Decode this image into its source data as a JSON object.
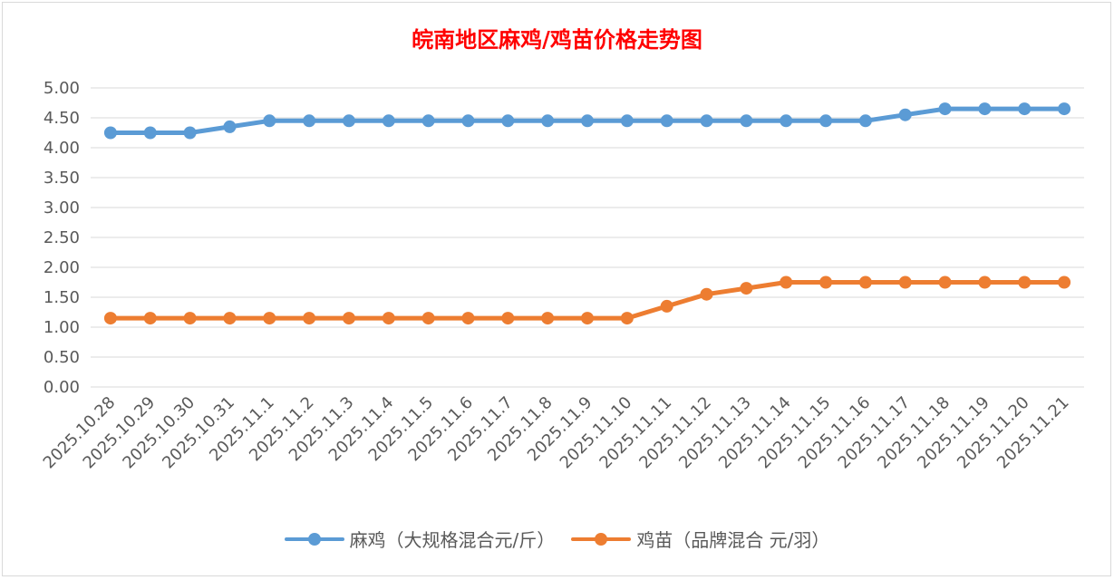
{
  "chart_data": {
    "type": "line",
    "title": "皖南地区麻鸡/鸡苗价格走势图",
    "categories": [
      "2025.10.28",
      "2025.10.29",
      "2025.10.30",
      "2025.10.31",
      "2025.11.1",
      "2025.11.2",
      "2025.11.3",
      "2025.11.4",
      "2025.11.5",
      "2025.11.6",
      "2025.11.7",
      "2025.11.8",
      "2025.11.9",
      "2025.11.10",
      "2025.11.11",
      "2025.11.12",
      "2025.11.13",
      "2025.11.14",
      "2025.11.15",
      "2025.11.16",
      "2025.11.17",
      "2025.11.18",
      "2025.11.19",
      "2025.11.20",
      "2025.11.21"
    ],
    "series": [
      {
        "name": "麻鸡（大规格混合元/斤）",
        "color": "#5b9bd5",
        "values": [
          4.25,
          4.25,
          4.25,
          4.35,
          4.45,
          4.45,
          4.45,
          4.45,
          4.45,
          4.45,
          4.45,
          4.45,
          4.45,
          4.45,
          4.45,
          4.45,
          4.45,
          4.45,
          4.45,
          4.45,
          4.55,
          4.65,
          4.65,
          4.65,
          4.65
        ]
      },
      {
        "name": "鸡苗（品牌混合 元/羽）",
        "color": "#ed7d31",
        "values": [
          1.15,
          1.15,
          1.15,
          1.15,
          1.15,
          1.15,
          1.15,
          1.15,
          1.15,
          1.15,
          1.15,
          1.15,
          1.15,
          1.15,
          1.35,
          1.55,
          1.65,
          1.75,
          1.75,
          1.75,
          1.75,
          1.75,
          1.75,
          1.75,
          1.75
        ]
      }
    ],
    "yticks": [
      "0.00",
      "0.50",
      "1.00",
      "1.50",
      "2.00",
      "2.50",
      "3.00",
      "3.50",
      "4.00",
      "4.50",
      "5.00"
    ],
    "ylim": [
      0,
      5
    ],
    "grid": true,
    "legend_position": "bottom"
  }
}
